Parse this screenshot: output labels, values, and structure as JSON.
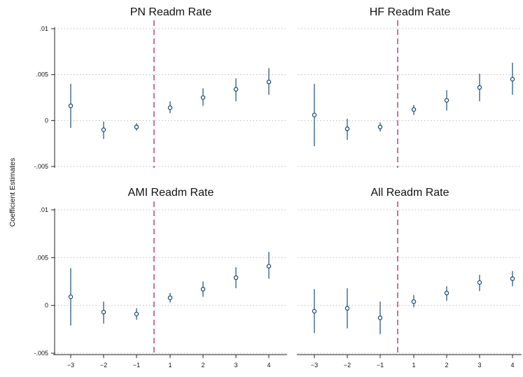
{
  "figure": {
    "ylabel": "Coefficient Estimates",
    "colors": {
      "marker": "#1f4e79",
      "ci": "#2b5a82",
      "event_line": "#c0506e",
      "grid": "#bdbdbd",
      "axis": "#222222"
    }
  },
  "chart_data": [
    {
      "type": "scatter",
      "title": "PN Readm Rate",
      "x": [
        -3,
        -2,
        -1,
        1,
        2,
        3,
        4
      ],
      "y": [
        0.0016,
        -0.001,
        -0.0007,
        0.0014,
        0.0025,
        0.0034,
        0.0042
      ],
      "ci_low": [
        -0.0008,
        -0.002,
        -0.0011,
        0.0008,
        0.0016,
        0.0021,
        0.0028
      ],
      "ci_high": [
        0.004,
        -0.0001,
        -0.0003,
        0.0021,
        0.0035,
        0.0046,
        0.0057
      ],
      "ylim": [
        -0.005,
        0.01
      ],
      "yticks": [
        ".01",
        ".005",
        "0",
        "-.005"
      ],
      "event_line_x": 0,
      "grid": true
    },
    {
      "type": "scatter",
      "title": "HF Readm Rate",
      "x": [
        -3,
        -2,
        -1,
        1,
        2,
        3,
        4
      ],
      "y": [
        0.0006,
        -0.0009,
        -0.0007,
        0.0012,
        0.0022,
        0.0036,
        0.0045
      ],
      "ci_low": [
        -0.0028,
        -0.0021,
        -0.0012,
        0.0006,
        0.0011,
        0.0021,
        0.0028
      ],
      "ci_high": [
        0.004,
        0.0002,
        -0.0002,
        0.0017,
        0.0033,
        0.0051,
        0.0063
      ],
      "ylim": [
        -0.005,
        0.01
      ],
      "yticks": [],
      "event_line_x": 0,
      "grid": true
    },
    {
      "type": "scatter",
      "title": "AMI Readm Rate",
      "x": [
        -3,
        -2,
        -1,
        1,
        2,
        3,
        4
      ],
      "y": [
        0.0009,
        -0.0007,
        -0.0009,
        0.0008,
        0.0017,
        0.0029,
        0.0041
      ],
      "ci_low": [
        -0.0021,
        -0.0019,
        -0.0015,
        0.0003,
        0.0009,
        0.0018,
        0.0028
      ],
      "ci_high": [
        0.0039,
        0.0004,
        -0.0003,
        0.0013,
        0.0025,
        0.004,
        0.0056
      ],
      "ylim": [
        -0.005,
        0.01
      ],
      "yticks": [
        ".01",
        ".005",
        "0",
        "-.005"
      ],
      "xticks": [
        "−3",
        "−2",
        "−1",
        "1",
        "2",
        "3",
        "4"
      ],
      "event_line_x": 0,
      "grid": true
    },
    {
      "type": "scatter",
      "title": "All Readm Rate",
      "x": [
        -3,
        -2,
        -1,
        1,
        2,
        3,
        4
      ],
      "y": [
        -0.0006,
        -0.0003,
        -0.0013,
        0.0004,
        0.0013,
        0.0024,
        0.0028
      ],
      "ci_low": [
        -0.0029,
        -0.0024,
        -0.003,
        -0.0002,
        0.0005,
        0.0015,
        0.002
      ],
      "ci_high": [
        0.0017,
        0.0018,
        0.0004,
        0.0011,
        0.002,
        0.0032,
        0.0036
      ],
      "ylim": [
        -0.005,
        0.01
      ],
      "yticks": [],
      "xticks": [
        "−3",
        "−2",
        "−1",
        "1",
        "2",
        "3",
        "4"
      ],
      "event_line_x": 0,
      "grid": true
    }
  ]
}
